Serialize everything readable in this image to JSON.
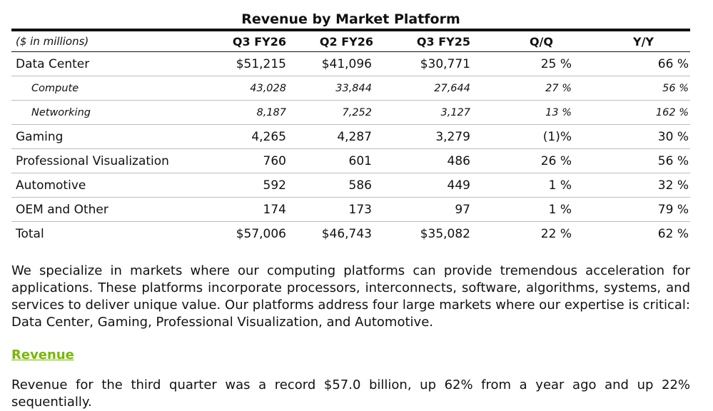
{
  "table": {
    "title": "Revenue by Market Platform",
    "unit_label": "($ in millions)",
    "columns": [
      "Q3 FY26",
      "Q2 FY26",
      "Q3 FY25",
      "Q/Q",
      "Y/Y"
    ],
    "rows": [
      {
        "label": "Data Center",
        "style": "main",
        "values": [
          "$51,215",
          "$41,096",
          "$30,771",
          "25 %",
          "66 %"
        ]
      },
      {
        "label": "Compute",
        "style": "sub",
        "values": [
          "43,028",
          "33,844",
          "27,644",
          "27 %",
          "56 %"
        ]
      },
      {
        "label": "Networking",
        "style": "sub",
        "values": [
          "8,187",
          "7,252",
          "3,127",
          "13 %",
          "162 %"
        ]
      },
      {
        "label": "Gaming",
        "style": "main",
        "values": [
          "4,265",
          "4,287",
          "3,279",
          "(1)%",
          "30 %"
        ]
      },
      {
        "label": "Professional Visualization",
        "style": "main",
        "values": [
          "760",
          "601",
          "486",
          "26 %",
          "56 %"
        ]
      },
      {
        "label": "Automotive",
        "style": "main",
        "values": [
          "592",
          "586",
          "449",
          "1 %",
          "32 %"
        ]
      },
      {
        "label": "OEM and Other",
        "style": "main",
        "values": [
          "174",
          "173",
          "97",
          "1 %",
          "79 %"
        ]
      },
      {
        "label": "Total",
        "style": "main",
        "values": [
          "$57,006",
          "$46,743",
          "$35,082",
          "22 %",
          "62 %"
        ]
      }
    ]
  },
  "intro_paragraph": "We specialize in markets where our computing platforms can provide tremendous acceleration for applications. These platforms incorporate processors, interconnects, software, algorithms, systems, and services to deliver unique value. Our platforms address four large markets where our expertise is critical: Data Center, Gaming, Professional Visualization, and Automotive.",
  "revenue_heading": "Revenue",
  "revenue_paragraph": "Revenue for the third quarter was a record $57.0 billion, up 62% from a year ago and up 22% sequentially.",
  "colors": {
    "heading_accent": "#76b900",
    "text": "#111111"
  }
}
